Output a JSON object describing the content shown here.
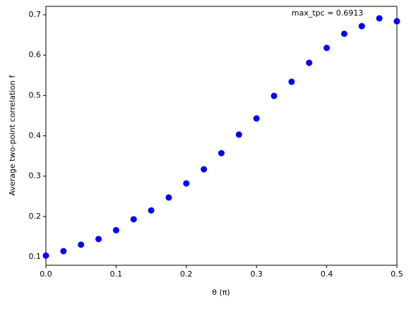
{
  "chart_data": {
    "type": "scatter",
    "xlabel": "θ (π)",
    "ylabel": "Average two-point correlation f",
    "annotation": "max_tpc = 0.6913",
    "color": "#0000ff",
    "x": [
      0,
      0.025,
      0.05,
      0.075,
      0.1,
      0.125,
      0.15,
      0.175,
      0.2,
      0.225,
      0.25,
      0.275,
      0.3,
      0.325,
      0.35,
      0.375,
      0.4,
      0.425,
      0.45,
      0.475,
      0.5
    ],
    "values": [
      0.103,
      0.114,
      0.13,
      0.144,
      0.166,
      0.193,
      0.215,
      0.247,
      0.282,
      0.317,
      0.357,
      0.403,
      0.443,
      0.499,
      0.534,
      0.581,
      0.618,
      0.653,
      0.672,
      0.6913,
      0.684
    ],
    "xlim": [
      0,
      0.5
    ],
    "ylim": [
      0.079,
      0.721
    ],
    "xticks": [
      {
        "value": 0,
        "label": "0.0"
      },
      0.1,
      0.2,
      0.3,
      0.4,
      0.5
    ],
    "yticks": [
      0.1,
      0.2,
      0.3,
      0.4,
      0.5,
      0.6,
      0.7
    ]
  }
}
